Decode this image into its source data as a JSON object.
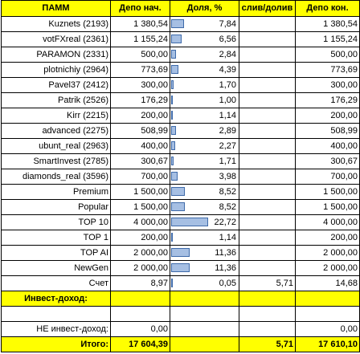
{
  "headers": [
    "ПАММ",
    "Депо нач.",
    "Доля, %",
    "слив/долив",
    "Депо кон."
  ],
  "rows": [
    {
      "name": "Kuznets (2193)",
      "start": "1 380,54",
      "share": "7,84",
      "flow": "",
      "end": "1 380,54"
    },
    {
      "name": "votFXreal (2361)",
      "start": "1 155,24",
      "share": "6,56",
      "flow": "",
      "end": "1 155,24"
    },
    {
      "name": "PARAMON (2331)",
      "start": "500,00",
      "share": "2,84",
      "flow": "",
      "end": "500,00"
    },
    {
      "name": "plotnichiy (2964)",
      "start": "773,69",
      "share": "4,39",
      "flow": "",
      "end": "773,69"
    },
    {
      "name": "Pavel37 (2412)",
      "start": "300,00",
      "share": "1,70",
      "flow": "",
      "end": "300,00"
    },
    {
      "name": "Patrik (2526)",
      "start": "176,29",
      "share": "1,00",
      "flow": "",
      "end": "176,29"
    },
    {
      "name": "Kirr (2215)",
      "start": "200,00",
      "share": "1,14",
      "flow": "",
      "end": "200,00"
    },
    {
      "name": "advanced (2275)",
      "start": "508,99",
      "share": "2,89",
      "flow": "",
      "end": "508,99"
    },
    {
      "name": "ubunt_real (2963)",
      "start": "400,00",
      "share": "2,27",
      "flow": "",
      "end": "400,00"
    },
    {
      "name": "SmartInvest (2785)",
      "start": "300,67",
      "share": "1,71",
      "flow": "",
      "end": "300,67"
    },
    {
      "name": "diamonds_real (3596)",
      "start": "700,00",
      "share": "3,98",
      "flow": "",
      "end": "700,00"
    },
    {
      "name": "Premium",
      "start": "1 500,00",
      "share": "8,52",
      "flow": "",
      "end": "1 500,00"
    },
    {
      "name": "Popular",
      "start": "1 500,00",
      "share": "8,52",
      "flow": "",
      "end": "1 500,00"
    },
    {
      "name": "TOP 10",
      "start": "4 000,00",
      "share": "22,72",
      "flow": "",
      "end": "4 000,00"
    },
    {
      "name": "TOP 1",
      "start": "200,00",
      "share": "1,14",
      "flow": "",
      "end": "200,00"
    },
    {
      "name": "TOP AI",
      "start": "2 000,00",
      "share": "11,36",
      "flow": "",
      "end": "2 000,00"
    },
    {
      "name": "NewGen",
      "start": "2 000,00",
      "share": "11,36",
      "flow": "",
      "end": "2 000,00"
    },
    {
      "name": "Счет",
      "start": "8,97",
      "share": "0,05",
      "flow": "5,71",
      "end": "14,68"
    }
  ],
  "invest_label": "Инвест-доход:",
  "noninvest": {
    "label": "НЕ инвест-доход:",
    "start": "0,00",
    "end": "0,00"
  },
  "total": {
    "label": "Итого:",
    "start": "17 604,39",
    "flow": "5,71",
    "end": "17 610,10"
  },
  "colors": {
    "header_bg": "#ffff00",
    "bar_fill": "#a6bfe3",
    "bar_border": "#3e6aa9"
  }
}
